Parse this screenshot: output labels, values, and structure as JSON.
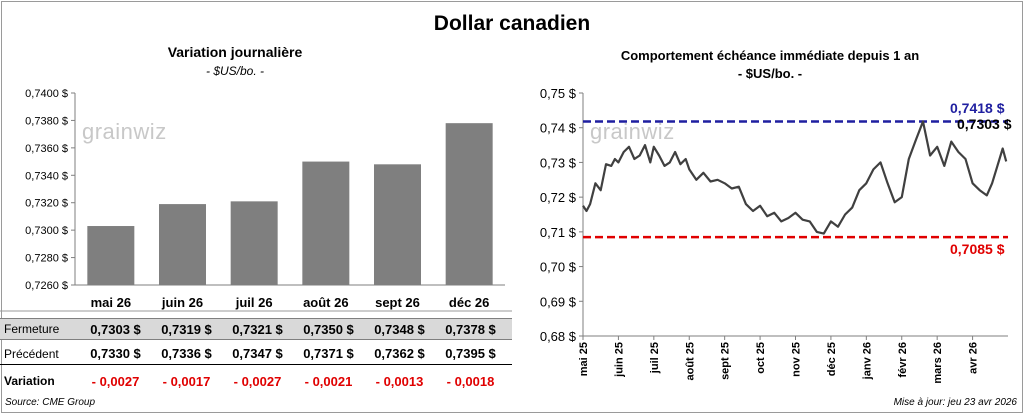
{
  "title": "Dollar canadien",
  "left_panel": {
    "title": "Variation  journalière",
    "unit": "- $US/bo. -"
  },
  "right_panel": {
    "title": "Comportement échéance immédiate depuis 1 an",
    "unit": "- $US/bo. -"
  },
  "logo": "grainwiz",
  "table": {
    "rows": [
      {
        "label": "Fermeture",
        "values": [
          "0,7303  $",
          "0,7319  $",
          "0,7321  $",
          "0,7350  $",
          "0,7348  $",
          "0,7378  $"
        ]
      },
      {
        "label": "Précédent",
        "values": [
          "0,7330  $",
          "0,7336  $",
          "0,7347  $",
          "0,7371  $",
          "0,7362  $",
          "0,7395  $"
        ]
      },
      {
        "label": "Variation",
        "values": [
          "- 0,0027",
          "- 0,0017",
          "- 0,0027",
          "- 0,0021",
          "- 0,0013",
          "- 0,0018"
        ]
      }
    ]
  },
  "source": "Source: CME Group",
  "update": "Mise à jour: jeu 23 avr 2026",
  "colors": {
    "bar": "#7f7f7f",
    "line": "#404040",
    "high": "#1f1fa0",
    "low": "#e00000"
  },
  "chart_data": [
    {
      "type": "bar",
      "categories": [
        "mai 26",
        "juin 26",
        "juil 26",
        "août 26",
        "sept 26",
        "déc 26"
      ],
      "values": [
        0.7303,
        0.7319,
        0.7321,
        0.735,
        0.7348,
        0.7378
      ],
      "ylim": [
        0.726,
        0.74
      ],
      "yticks": [
        "0,7260 $",
        "0,7280 $",
        "0,7300 $",
        "0,7320 $",
        "0,7340 $",
        "0,7360 $",
        "0,7380 $",
        "0,7400 $"
      ],
      "grid": false
    },
    {
      "type": "line",
      "ylim": [
        0.68,
        0.75
      ],
      "yticks": [
        "0,68 $",
        "0,69 $",
        "0,70 $",
        "0,71 $",
        "0,72 $",
        "0,73 $",
        "0,74 $",
        "0,75 $"
      ],
      "xticks": [
        "mai 25",
        "juin 25",
        "juil 25",
        "août 25",
        "sept 25",
        "oct 25",
        "nov 25",
        "déc 25",
        "janv 26",
        "févr 26",
        "mars 26",
        "avr 26"
      ],
      "high": {
        "value": 0.7418,
        "label": "0,7418  $"
      },
      "low": {
        "value": 0.7085,
        "label": "0,7085  $"
      },
      "last": {
        "value": 0.7303,
        "label": "0,7303  $"
      },
      "x_months": [
        0,
        0.1,
        0.2,
        0.35,
        0.5,
        0.65,
        0.8,
        0.9,
        1.0,
        1.15,
        1.3,
        1.45,
        1.6,
        1.75,
        1.9,
        2.0,
        2.15,
        2.3,
        2.45,
        2.6,
        2.75,
        2.9,
        3.0,
        3.2,
        3.4,
        3.6,
        3.8,
        4.0,
        4.2,
        4.4,
        4.6,
        4.8,
        5.0,
        5.2,
        5.4,
        5.6,
        5.8,
        6.0,
        6.2,
        6.4,
        6.6,
        6.8,
        7.0,
        7.2,
        7.4,
        7.6,
        7.8,
        8.0,
        8.2,
        8.4,
        8.6,
        8.8,
        9.0,
        9.2,
        9.4,
        9.6,
        9.8,
        10.0,
        10.2,
        10.4,
        10.6,
        10.8,
        11.0,
        11.2,
        11.4,
        11.55,
        11.7,
        11.85,
        11.95
      ],
      "y": [
        0.7175,
        0.716,
        0.718,
        0.724,
        0.722,
        0.7295,
        0.729,
        0.731,
        0.73,
        0.733,
        0.7345,
        0.731,
        0.732,
        0.735,
        0.73,
        0.7345,
        0.732,
        0.729,
        0.73,
        0.733,
        0.7295,
        0.731,
        0.728,
        0.725,
        0.727,
        0.7245,
        0.725,
        0.724,
        0.7225,
        0.723,
        0.718,
        0.716,
        0.7175,
        0.7145,
        0.7155,
        0.713,
        0.714,
        0.7155,
        0.7135,
        0.713,
        0.71,
        0.7095,
        0.713,
        0.7115,
        0.715,
        0.717,
        0.722,
        0.724,
        0.728,
        0.73,
        0.724,
        0.7185,
        0.72,
        0.731,
        0.7365,
        0.7418,
        0.732,
        0.7345,
        0.729,
        0.736,
        0.733,
        0.731,
        0.724,
        0.722,
        0.7205,
        0.724,
        0.729,
        0.734,
        0.7303
      ]
    }
  ]
}
